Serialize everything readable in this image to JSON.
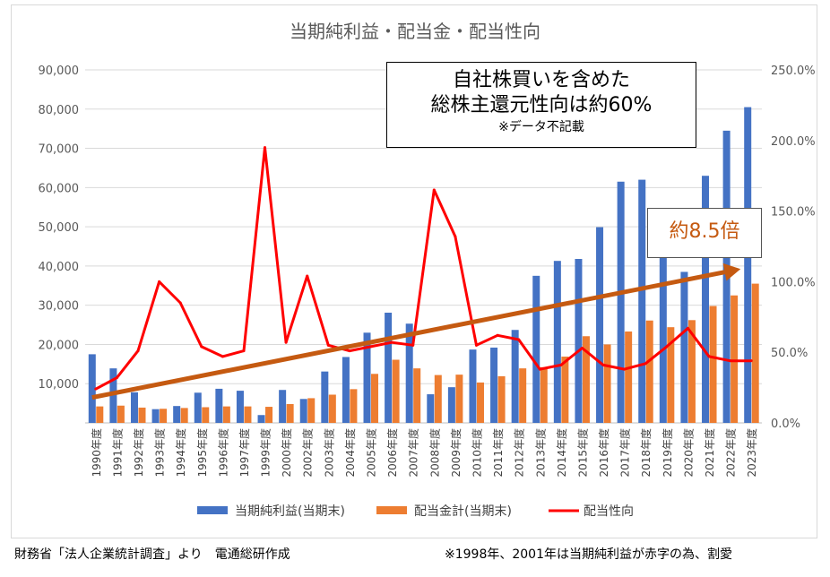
{
  "footer": {
    "source": "財務省「法人企業統計調査」より　電通総研作成",
    "note": "※1998年、2001年は当期純利益が赤字の為、割愛"
  },
  "callout": {
    "line1": "自社株買いを含めた",
    "line2": "総株主還元性向は約60%",
    "note": "※データ不記載"
  },
  "badge": "約8.5倍",
  "colors": {
    "net_income": "#4472c4",
    "dividends": "#ed7d31",
    "payout": "#ff0000",
    "trend": "#c55a11"
  },
  "chart_data": {
    "type": "bar",
    "title": "当期純利益・配当金・配当性向",
    "categories": [
      "1990年度",
      "1991年度",
      "1992年度",
      "1993年度",
      "1994年度",
      "1995年度",
      "1996年度",
      "1997年度",
      "1999年度",
      "2000年度",
      "2002年度",
      "2003年度",
      "2004年度",
      "2005年度",
      "2006年度",
      "2007年度",
      "2008年度",
      "2009年度",
      "2010年度",
      "2011年度",
      "2012年度",
      "2013年度",
      "2014年度",
      "2015年度",
      "2016年度",
      "2017年度",
      "2018年度",
      "2019年度",
      "2020年度",
      "2021年度",
      "2022年度",
      "2023年度"
    ],
    "series": [
      {
        "name": "当期純利益(当期末)",
        "type": "bar",
        "axis": "left",
        "values": [
          17500,
          13900,
          7800,
          3500,
          4300,
          7700,
          8700,
          8200,
          2000,
          8400,
          6100,
          13100,
          16800,
          23000,
          28100,
          25300,
          7300,
          9100,
          18700,
          19200,
          23700,
          37500,
          41300,
          41800,
          49900,
          61500,
          62000,
          42800,
          38500,
          63000,
          74500,
          80500
        ]
      },
      {
        "name": "配当金計(当期末)",
        "type": "bar",
        "axis": "left",
        "values": [
          4200,
          4400,
          3900,
          3600,
          3800,
          4000,
          4200,
          4200,
          4100,
          4800,
          6300,
          7200,
          8600,
          12500,
          16100,
          13900,
          12200,
          12300,
          10300,
          11900,
          13900,
          14200,
          16900,
          22100,
          20000,
          23300,
          26100,
          24400,
          26200,
          29800,
          32500,
          35500
        ]
      },
      {
        "name": "配当性向",
        "type": "line",
        "axis": "right",
        "values": [
          24,
          32,
          51,
          100,
          85,
          54,
          47,
          51,
          195,
          57,
          104,
          55,
          51,
          54,
          57,
          55,
          165,
          132,
          55,
          62,
          59,
          38,
          41,
          53,
          41,
          38,
          42,
          54,
          67,
          47,
          44,
          44
        ]
      }
    ],
    "left_axis": {
      "min": 0,
      "max": 90000,
      "ticks": [
        0,
        10000,
        20000,
        30000,
        40000,
        50000,
        60000,
        70000,
        80000,
        90000
      ],
      "tick_labels": [
        "",
        "10,000",
        "20,000",
        "30,000",
        "40,000",
        "50,000",
        "60,000",
        "70,000",
        "80,000",
        "90,000"
      ]
    },
    "right_axis": {
      "min": 0,
      "max": 250,
      "ticks": [
        0,
        50,
        100,
        150,
        200,
        250
      ],
      "tick_labels": [
        "0.0%",
        "50.0%",
        "100.0%",
        "150.0%",
        "200.0%",
        "250.0%"
      ]
    },
    "trend_arrow": {
      "from": {
        "category_index": 0,
        "value": 18
      },
      "to": {
        "category_index": 31,
        "value": 109
      },
      "color": "#c55a11"
    },
    "grid": true,
    "legend_position": "bottom"
  }
}
